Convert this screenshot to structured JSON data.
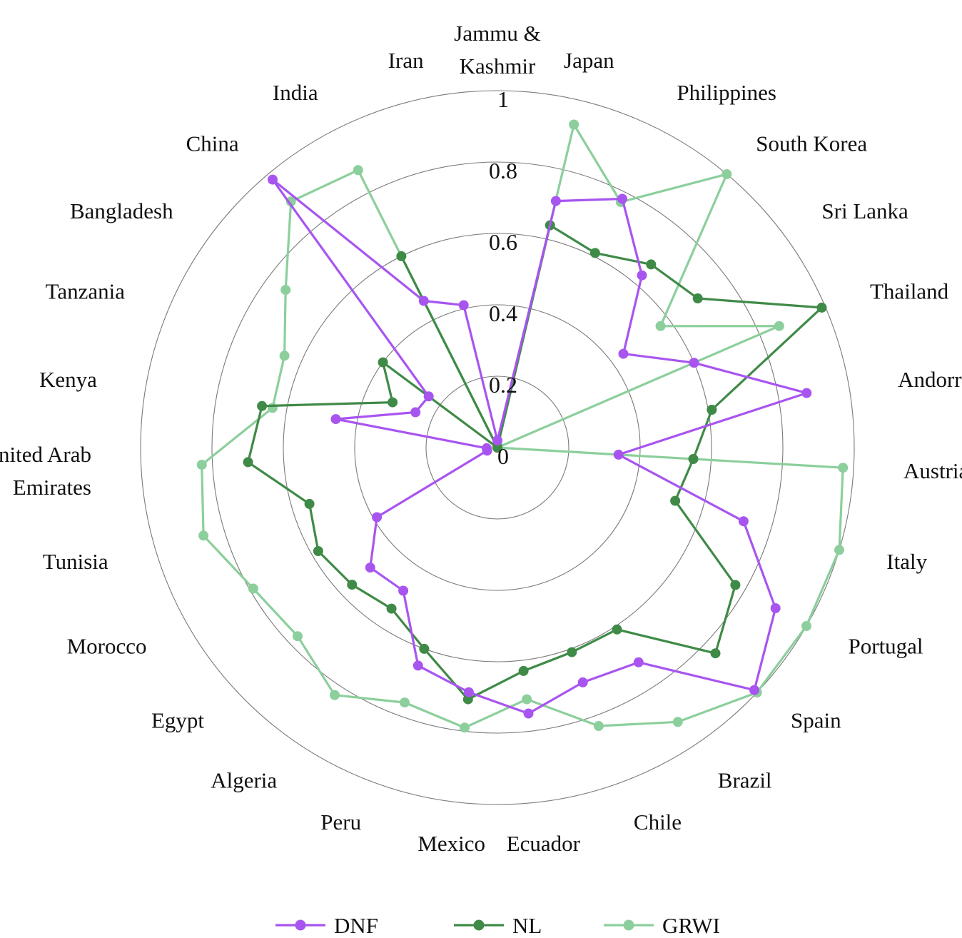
{
  "chart_data": {
    "type": "radar",
    "categories": [
      "Jammu & Kashmir",
      "Japan",
      "Philippines",
      "South Korea",
      "Sri Lanka",
      "Thailand",
      "Andorra",
      "Austria",
      "Italy",
      "Portugal",
      "Spain",
      "Brazil",
      "Chile",
      "Ecuador",
      "Mexico",
      "Peru",
      "Algeria",
      "Egypt",
      "Morocco",
      "Tunisia",
      "United Arab Emirates",
      "Kenya",
      "Tanzania",
      "Bangladesh",
      "China",
      "India",
      "Iran"
    ],
    "label_lines": [
      [
        "Jammu &",
        "Kashmir"
      ],
      [
        "Japan"
      ],
      [
        "Philippines"
      ],
      [
        "South Korea"
      ],
      [
        "Sri Lanka"
      ],
      [
        "Thailand"
      ],
      [
        "Andorra"
      ],
      [
        "Austria"
      ],
      [
        "Italy"
      ],
      [
        "Portugal"
      ],
      [
        "Spain"
      ],
      [
        "Brazil"
      ],
      [
        "Chile"
      ],
      [
        "Ecuador"
      ],
      [
        "Mexico"
      ],
      [
        "Peru"
      ],
      [
        "Algeria"
      ],
      [
        "Egypt"
      ],
      [
        "Morocco"
      ],
      [
        "Tunisia"
      ],
      [
        "United Arab",
        "Emirates"
      ],
      [
        "Kenya"
      ],
      [
        "Tanzania"
      ],
      [
        "Bangladesh"
      ],
      [
        "China"
      ],
      [
        "India"
      ],
      [
        "Iran"
      ]
    ],
    "series": [
      {
        "name": "DNF",
        "color": "#a855f0",
        "values": [
          0.02,
          0.71,
          0.78,
          0.63,
          0.44,
          0.6,
          0.88,
          0.34,
          0.72,
          0.9,
          0.99,
          0.72,
          0.7,
          0.75,
          0.69,
          0.65,
          0.48,
          0.49,
          0.39,
          0.03,
          0.03,
          0.46,
          0.25,
          0.24,
          0.98,
          0.46,
          0.41
        ]
      },
      {
        "name": "NL",
        "color": "#3f8a47",
        "values": [
          0.0,
          0.64,
          0.61,
          0.67,
          0.7,
          0.99,
          0.61,
          0.55,
          0.52,
          0.77,
          0.84,
          0.61,
          0.61,
          0.63,
          0.71,
          0.6,
          0.54,
          0.56,
          0.58,
          0.55,
          0.7,
          0.67,
          0.32,
          0.4,
          0.0,
          0.6,
          0.0
        ]
      },
      {
        "name": "GRWI",
        "color": "#8ccf9c",
        "values": [
          0.01,
          0.93,
          0.77,
          1.0,
          0.57,
          0.86,
          0.0,
          0.97,
          1.0,
          1.0,
          1.0,
          0.92,
          0.83,
          0.71,
          0.79,
          0.76,
          0.83,
          0.77,
          0.79,
          0.86,
          0.83,
          0.64,
          0.65,
          0.74,
          0.9,
          0.87,
          0.0
        ]
      }
    ],
    "radial_ticks": [
      "0",
      "0.2",
      "0.4",
      "0.6",
      "0.8",
      "1"
    ],
    "ylim": [
      0,
      1
    ],
    "grid": true,
    "legend": "bottom"
  }
}
